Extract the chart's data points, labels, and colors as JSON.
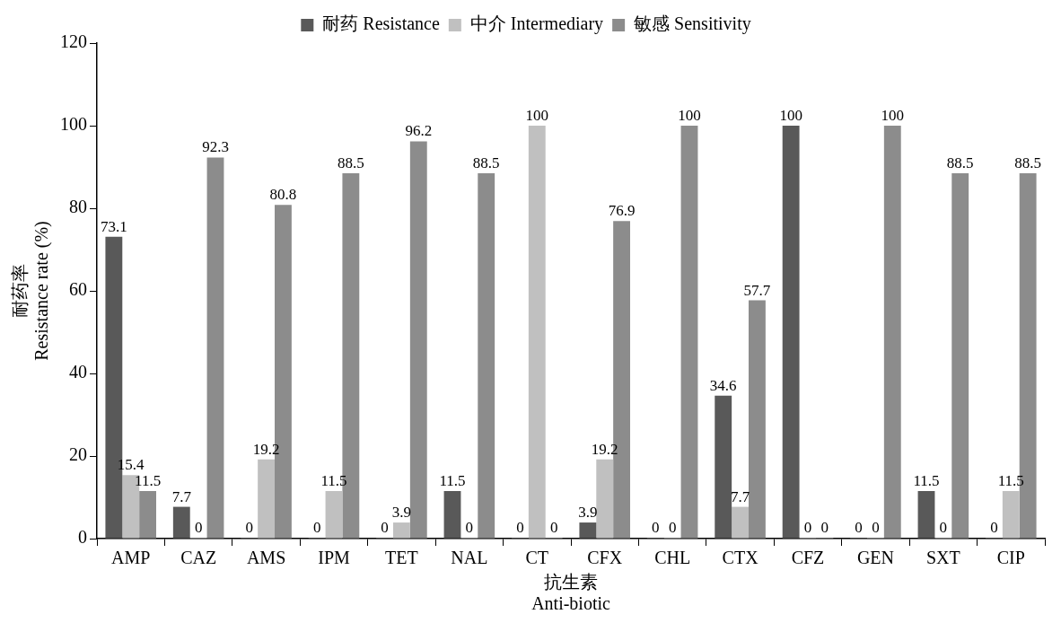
{
  "chart_data": {
    "type": "bar",
    "categories": [
      "AMP",
      "CAZ",
      "AMS",
      "IPM",
      "TET",
      "NAL",
      "CT",
      "CFX",
      "CHL",
      "CTX",
      "CFZ",
      "GEN",
      "SXT",
      "CIP"
    ],
    "series": [
      {
        "name": "耐药 Resistance",
        "color": "#595959",
        "values": [
          73.1,
          7.7,
          0,
          0,
          0,
          11.5,
          0,
          3.9,
          0,
          34.6,
          100,
          0,
          11.5,
          0
        ]
      },
      {
        "name": "中介 Intermediary",
        "color": "#c0c0c0",
        "values": [
          15.4,
          0,
          19.2,
          11.5,
          3.9,
          0,
          100,
          19.2,
          0,
          7.7,
          0,
          0,
          0,
          11.5
        ]
      },
      {
        "name": "敏感 Sensitivity",
        "color": "#8c8c8c",
        "values": [
          11.5,
          92.3,
          80.8,
          88.5,
          96.2,
          88.5,
          0,
          76.9,
          100,
          57.7,
          0,
          100,
          88.5,
          88.5
        ]
      }
    ],
    "xlabel": "抗生素\nAnti-biotic",
    "ylabel": "耐药率\nResistance rate (%)",
    "ylim": [
      0,
      120
    ],
    "yticks": [
      0,
      20,
      40,
      60,
      80,
      100,
      120
    ],
    "grid": false,
    "legend": "top",
    "data_labels": true
  }
}
